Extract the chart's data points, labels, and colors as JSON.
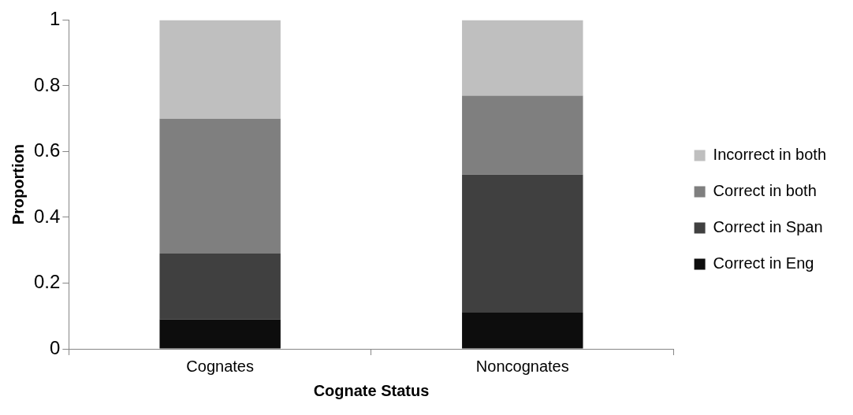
{
  "chart_data": {
    "type": "bar",
    "stacked": true,
    "categories": [
      "Cognates",
      "Noncognates"
    ],
    "xlabel": "Cognate Status",
    "ylabel": "Proportion",
    "ylim": [
      0,
      1
    ],
    "yticks": [
      0,
      0.2,
      0.4,
      0.6,
      0.8,
      1
    ],
    "grid": false,
    "legend": "right",
    "series": [
      {
        "name": "Correct in Eng",
        "color": "#0d0d0d",
        "values": [
          0.09,
          0.11
        ]
      },
      {
        "name": "Correct in Span",
        "color": "#404040",
        "values": [
          0.2,
          0.42
        ]
      },
      {
        "name": "Correct in both",
        "color": "#7f7f7f",
        "values": [
          0.41,
          0.24
        ]
      },
      {
        "name": "Incorrect in both",
        "color": "#bfbfbf",
        "values": [
          0.3,
          0.23
        ]
      }
    ]
  }
}
